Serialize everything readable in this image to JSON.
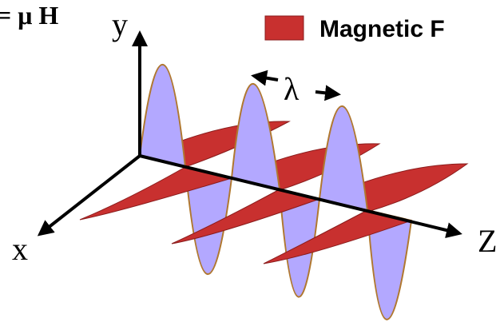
{
  "equation": "= μ H",
  "axes": {
    "y": "y",
    "x": "x",
    "z": "Z"
  },
  "legend": {
    "label": "Magnetic F"
  },
  "wavelength": "λ"
}
